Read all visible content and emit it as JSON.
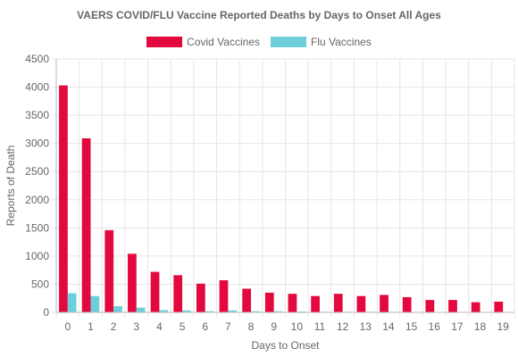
{
  "chart_data": {
    "type": "bar",
    "title": "VAERS COVID/FLU Vaccine Reported Deaths by Days to Onset All Ages",
    "xlabel": "Days to Onset",
    "ylabel": "Reports of Death",
    "ylim": [
      0,
      4500
    ],
    "yticks": [
      0,
      500,
      1000,
      1500,
      2000,
      2500,
      3000,
      3500,
      4000,
      4500
    ],
    "grid": true,
    "legend_position": "top",
    "categories": [
      "0",
      "1",
      "2",
      "3",
      "4",
      "5",
      "6",
      "7",
      "8",
      "9",
      "10",
      "11",
      "12",
      "13",
      "14",
      "15",
      "16",
      "17",
      "18",
      "19"
    ],
    "series": [
      {
        "name": "Covid Vaccines",
        "color": "#e3093f",
        "values": [
          4030,
          3090,
          1460,
          1040,
          720,
          660,
          510,
          570,
          420,
          350,
          330,
          290,
          330,
          290,
          310,
          270,
          220,
          220,
          180,
          190
        ]
      },
      {
        "name": "Flu Vaccines",
        "color": "#6ecfdc",
        "values": [
          340,
          290,
          110,
          85,
          40,
          35,
          20,
          35,
          20,
          20,
          15,
          10,
          10,
          10,
          10,
          5,
          5,
          5,
          5,
          5
        ]
      }
    ]
  }
}
